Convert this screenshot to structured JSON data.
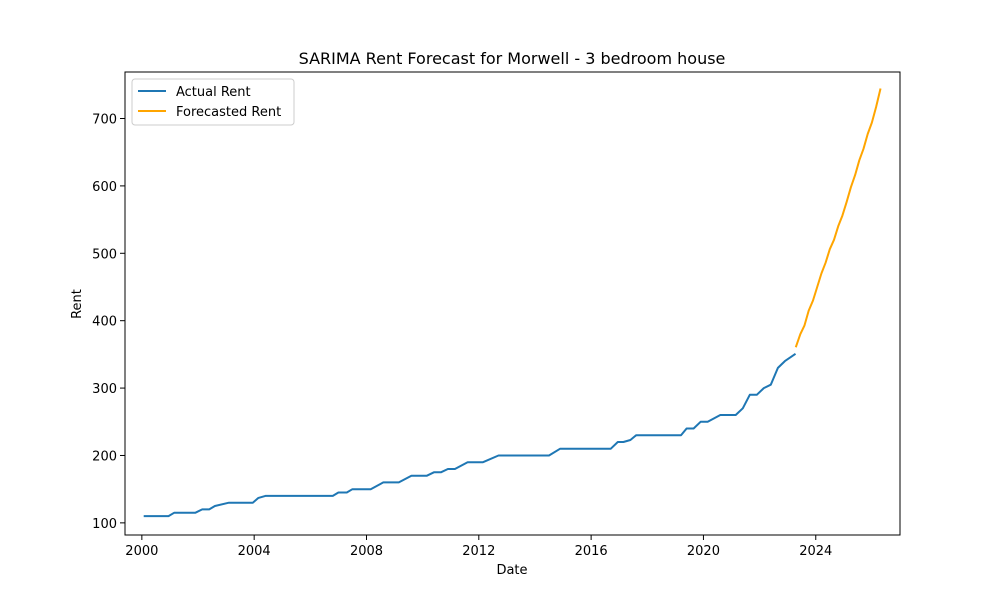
{
  "chart_data": {
    "type": "line",
    "title": "SARIMA Rent Forecast for Morwell - 3 bedroom house",
    "xlabel": "Date",
    "ylabel": "Rent",
    "xlim": [
      1999.4,
      2027.0
    ],
    "ylim": [
      82,
      769
    ],
    "x_ticks": [
      2000,
      2004,
      2008,
      2012,
      2016,
      2020,
      2024
    ],
    "x_tick_labels": [
      "2000",
      "2004",
      "2008",
      "2012",
      "2016",
      "2020",
      "2024"
    ],
    "y_ticks": [
      100,
      200,
      300,
      400,
      500,
      600,
      700
    ],
    "y_tick_labels": [
      "100",
      "200",
      "300",
      "400",
      "500",
      "600",
      "700"
    ],
    "grid": false,
    "legend_position": "top-left",
    "series": [
      {
        "name": "Actual Rent",
        "color": "#1f77b4",
        "points": [
          [
            2000.1,
            110
          ],
          [
            2000.95,
            110
          ],
          [
            2001.15,
            115
          ],
          [
            2001.9,
            115
          ],
          [
            2002.15,
            120
          ],
          [
            2002.4,
            120
          ],
          [
            2002.6,
            125
          ],
          [
            2003.1,
            130
          ],
          [
            2003.95,
            130
          ],
          [
            2004.15,
            137
          ],
          [
            2004.4,
            140
          ],
          [
            2006.8,
            140
          ],
          [
            2007.0,
            145
          ],
          [
            2007.3,
            145
          ],
          [
            2007.5,
            150
          ],
          [
            2008.15,
            150
          ],
          [
            2008.6,
            160
          ],
          [
            2009.15,
            160
          ],
          [
            2009.6,
            170
          ],
          [
            2010.15,
            170
          ],
          [
            2010.4,
            175
          ],
          [
            2010.65,
            175
          ],
          [
            2010.9,
            180
          ],
          [
            2011.15,
            180
          ],
          [
            2011.6,
            190
          ],
          [
            2012.15,
            190
          ],
          [
            2012.7,
            200
          ],
          [
            2014.5,
            200
          ],
          [
            2014.9,
            210
          ],
          [
            2016.7,
            210
          ],
          [
            2016.95,
            220
          ],
          [
            2017.15,
            220
          ],
          [
            2017.4,
            223
          ],
          [
            2017.6,
            230
          ],
          [
            2019.2,
            230
          ],
          [
            2019.4,
            240
          ],
          [
            2019.65,
            240
          ],
          [
            2019.9,
            250
          ],
          [
            2020.15,
            250
          ],
          [
            2020.6,
            260
          ],
          [
            2021.15,
            260
          ],
          [
            2021.4,
            270
          ],
          [
            2021.65,
            290
          ],
          [
            2021.9,
            290
          ],
          [
            2022.15,
            300
          ],
          [
            2022.4,
            305
          ],
          [
            2022.65,
            330
          ],
          [
            2022.9,
            340
          ],
          [
            2023.25,
            350
          ]
        ]
      },
      {
        "name": "Forecasted Rent",
        "color": "#ffa500",
        "points": [
          [
            2023.3,
            362
          ],
          [
            2023.45,
            380
          ],
          [
            2023.6,
            393
          ],
          [
            2023.75,
            415
          ],
          [
            2023.9,
            430
          ],
          [
            2024.05,
            450
          ],
          [
            2024.2,
            470
          ],
          [
            2024.35,
            486
          ],
          [
            2024.5,
            506
          ],
          [
            2024.65,
            520
          ],
          [
            2024.8,
            540
          ],
          [
            2024.95,
            556
          ],
          [
            2025.1,
            576
          ],
          [
            2025.25,
            598
          ],
          [
            2025.4,
            616
          ],
          [
            2025.55,
            638
          ],
          [
            2025.7,
            655
          ],
          [
            2025.85,
            677
          ],
          [
            2026.0,
            694
          ],
          [
            2026.15,
            717
          ],
          [
            2026.3,
            743
          ]
        ]
      }
    ]
  }
}
